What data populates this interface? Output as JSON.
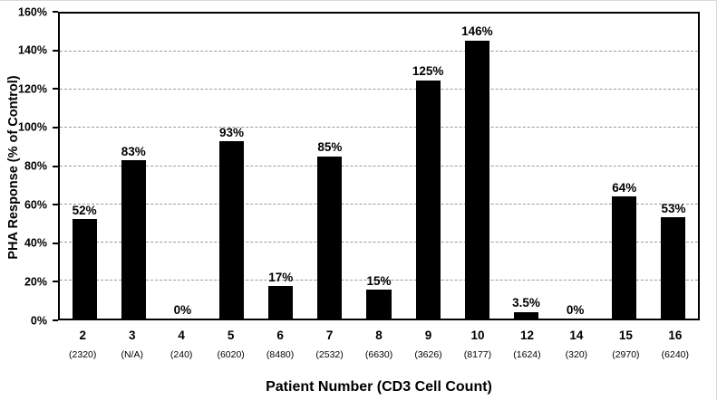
{
  "chart_data": {
    "type": "bar",
    "title": "",
    "xlabel": "Patient Number (CD3 Cell Count)",
    "ylabel": "PHA Response (% of Control)",
    "ylim": [
      0,
      160
    ],
    "ytick_step": 20,
    "ytick_labels": [
      "0%",
      "20%",
      "40%",
      "60%",
      "80%",
      "100%",
      "120%",
      "140%",
      "160%"
    ],
    "grid": "horizontal-dashed",
    "legend": "none",
    "bar_color": "#000000",
    "categories": [
      "2",
      "3",
      "4",
      "5",
      "6",
      "7",
      "8",
      "9",
      "10",
      "12",
      "14",
      "15",
      "16"
    ],
    "cd3_counts": [
      "(2320)",
      "(N/A)",
      "(240)",
      "(6020)",
      "(8480)",
      "(2532)",
      "(6630)",
      "(3626)",
      "(8177)",
      "(1624)",
      "(320)",
      "(2970)",
      "(6240)"
    ],
    "values": [
      52,
      83,
      0,
      93,
      17,
      85,
      15,
      125,
      146,
      3.5,
      0,
      64,
      53
    ],
    "value_labels": [
      "52%",
      "83%",
      "0%",
      "93%",
      "17%",
      "85%",
      "15%",
      "125%",
      "146%",
      "3.5%",
      "0%",
      "64%",
      "53%"
    ]
  }
}
